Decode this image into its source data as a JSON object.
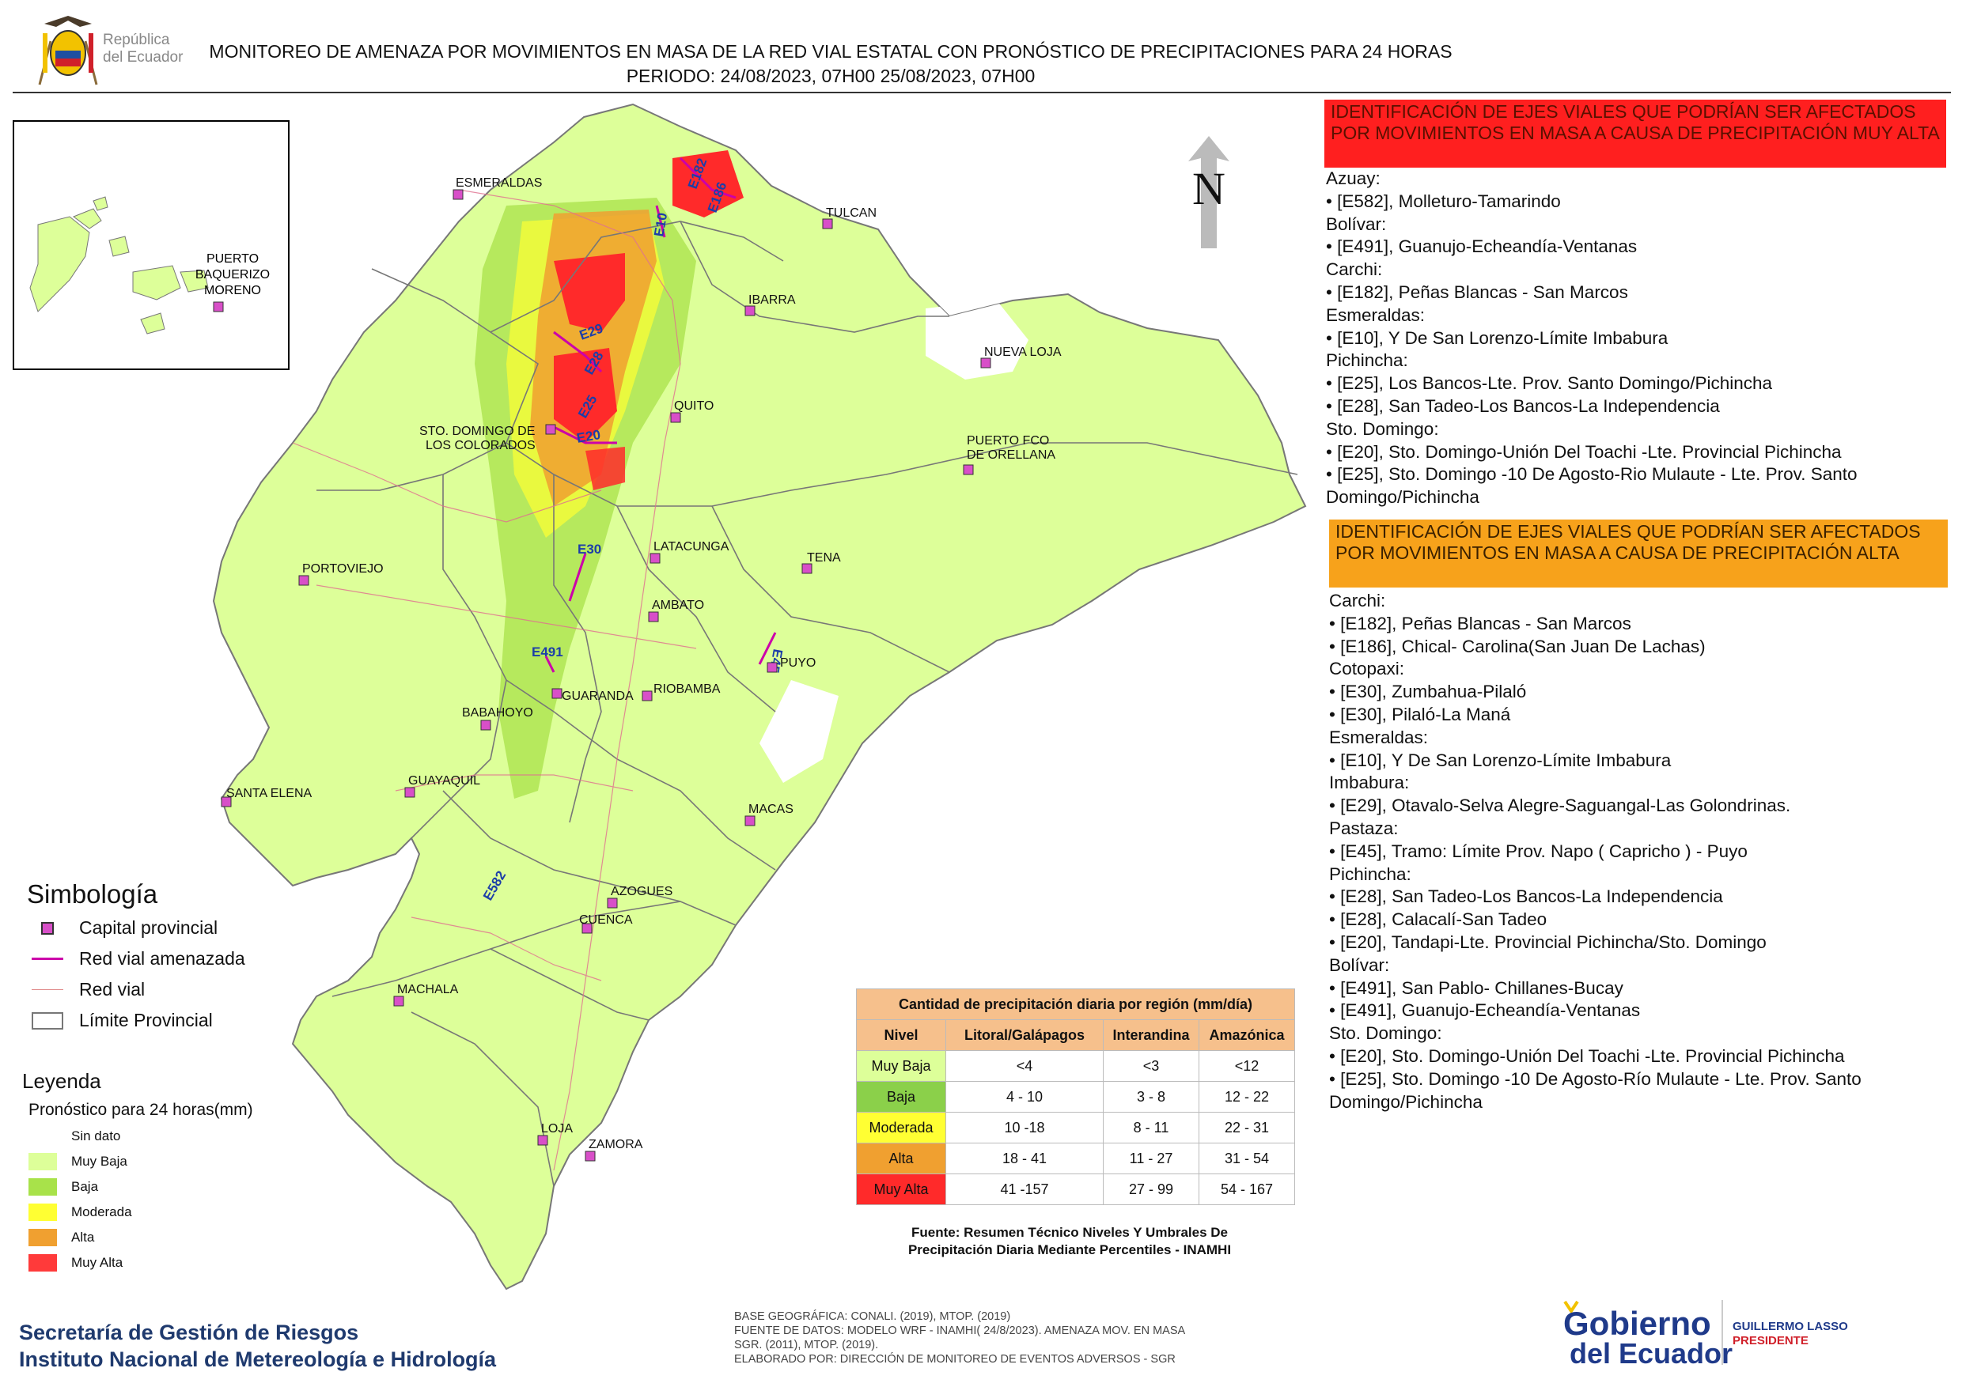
{
  "header": {
    "republica_line1": "República",
    "republica_line2": "del Ecuador",
    "title_line1": "MONITOREO DE AMENAZA POR MOVIMIENTOS EN MASA DE LA RED VIAL  ESTATAL  CON PRONÓSTICO  DE  PRECIPITACIONES PARA 24 HORAS",
    "title_line2": "PERIODO: 24/08/2023, 07H00 25/08/2023, 07H00"
  },
  "map": {
    "north_label": "N",
    "inset_labels": [
      "PUERTO",
      "BAQUERIZO",
      "MORENO"
    ],
    "cities": [
      {
        "name": "ESMERALDAS"
      },
      {
        "name": "TULCAN"
      },
      {
        "name": "IBARRA"
      },
      {
        "name": "NUEVA LOJA"
      },
      {
        "name": "QUITO"
      },
      {
        "name": "STO. DOMINGO DE"
      },
      {
        "name": "LOS COLORADOS"
      },
      {
        "name": "PUERTO FCO"
      },
      {
        "name": "DE ORELLANA"
      },
      {
        "name": "PORTOVIEJO"
      },
      {
        "name": "LATACUNGA"
      },
      {
        "name": "TENA"
      },
      {
        "name": "AMBATO"
      },
      {
        "name": "PUYO"
      },
      {
        "name": "GUARANDA"
      },
      {
        "name": "RIOBAMBA"
      },
      {
        "name": "BABAHOYO"
      },
      {
        "name": "GUAYAQUIL"
      },
      {
        "name": "SANTA ELENA"
      },
      {
        "name": "MACAS"
      },
      {
        "name": "AZOGUES"
      },
      {
        "name": "CUENCA"
      },
      {
        "name": "MACHALA"
      },
      {
        "name": "LOJA"
      },
      {
        "name": "ZAMORA"
      }
    ],
    "road_labels": [
      "E182",
      "E186",
      "E10",
      "E29",
      "E28",
      "E25",
      "E20",
      "E30",
      "E491",
      "E45",
      "E582"
    ]
  },
  "simbologia": {
    "title": "Simbología",
    "items": [
      "Capital provincial",
      "Red vial amenazada",
      "Red vial",
      "Límite Provincial"
    ]
  },
  "leyenda": {
    "title": "Leyenda",
    "subtitle": "Pronóstico para 24 horas(mm)",
    "levels": [
      {
        "label": "Sin dato",
        "color": "#ffffff"
      },
      {
        "label": "Muy Baja",
        "color": "#ddff99"
      },
      {
        "label": "Baja",
        "color": "#a8e24a"
      },
      {
        "label": "Moderada",
        "color": "#ffff33"
      },
      {
        "label": "Alta",
        "color": "#f0a030"
      },
      {
        "label": "Muy Alta",
        "color": "#ff3a3a"
      }
    ]
  },
  "precip_table": {
    "caption": "Cantidad de precipitación diaria por región (mm/día)",
    "headers": [
      "Nivel",
      "Litoral/Galápagos",
      "Interandina",
      "Amazónica"
    ],
    "rows": [
      {
        "nivel": "Muy Baja",
        "color": "#ddff99",
        "litoral": "<4",
        "interandina": "<3",
        "amazonica": "<12"
      },
      {
        "nivel": "Baja",
        "color": "#8bd04a",
        "litoral": "4 - 10",
        "interandina": "3 - 8",
        "amazonica": "12 - 22"
      },
      {
        "nivel": "Moderada",
        "color": "#ffff33",
        "litoral": "10 -18",
        "interandina": "8 - 11",
        "amazonica": "22 - 31"
      },
      {
        "nivel": "Alta",
        "color": "#f0a030",
        "litoral": "18 - 41",
        "interandina": "11 - 27",
        "amazonica": "31 - 54"
      },
      {
        "nivel": "Muy Alta",
        "color": "#ff2a2a",
        "litoral": "41 -157",
        "interandina": "27 - 99",
        "amazonica": "54 - 167"
      }
    ],
    "source_line1": "Fuente: Resumen Técnico Niveles Y Umbrales De",
    "source_line2": "Precipitación Diaria Mediante Percentiles - INAMHI"
  },
  "muy_alta_panel": {
    "header": "IDENTIFICACIÓN DE EJES VIALES QUE PODRÍAN SER AFECTADOS POR MOVIMIENTOS EN MASA A CAUSA DE PRECIPITACIÓN MUY ALTA",
    "color": "#ff1f1f",
    "lines": [
      "Azuay:",
      "• [E582], Molleturo-Tamarindo",
      "Bolívar:",
      "• [E491], Guanujo-Echeandía-Ventanas",
      "Carchi:",
      "• [E182], Peñas Blancas - San Marcos",
      "Esmeraldas:",
      "• [E10], Y De San Lorenzo-Límite Imbabura",
      "Pichincha:",
      "• [E25], Los Bancos-Lte. Prov. Santo Domingo/Pichincha",
      "• [E28], San Tadeo-Los Bancos-La Independencia",
      "Sto. Domingo:",
      "• [E20], Sto. Domingo-Unión Del Toachi -Lte. Provincial Pichincha",
      "• [E25], Sto. Domingo -10 De Agosto-Rio Mulaute - Lte. Prov. Santo",
      "Domingo/Pichincha"
    ]
  },
  "alta_panel": {
    "header": "IDENTIFICACIÓN DE EJES VIALES QUE PODRÍAN SER AFECTADOS POR MOVIMIENTOS EN MASA A CAUSA DE PRECIPITACIÓN  ALTA",
    "color": "#f7a21b",
    "lines": [
      "Carchi:",
      "• [E182], Peñas Blancas - San Marcos",
      "• [E186], Chical- Carolina(San Juan De Lachas)",
      "Cotopaxi:",
      "• [E30], Zumbahua-Pilaló",
      "• [E30], Pilaló-La Maná",
      "Esmeraldas:",
      "• [E10], Y De San Lorenzo-Límite Imbabura",
      "Imbabura:",
      "• [E29], Otavalo-Selva Alegre-Saguangal-Las Golondrinas.",
      "Pastaza:",
      "• [E45], Tramo: Límite Prov. Napo ( Capricho ) - Puyo",
      "Pichincha:",
      "• [E28], San Tadeo-Los Bancos-La Independencia",
      "• [E28], Calacalí-San Tadeo",
      "• [E20], Tandapi-Lte. Provincial Pichincha/Sto. Domingo",
      "Bolívar:",
      "• [E491], San Pablo- Chillanes-Bucay",
      "• [E491], Guanujo-Echeandía-Ventanas",
      "Sto. Domingo:",
      "• [E20], Sto. Domingo-Unión Del Toachi -Lte. Provincial Pichincha",
      "• [E25], Sto. Domingo -10 De Agosto-Río Mulaute - Lte. Prov. Santo",
      "Domingo/Pichincha"
    ]
  },
  "footer": {
    "org1": "Secretaría de Gestión de Riesgos",
    "org2": "Instituto Nacional de Metereología e Hidrología",
    "credit1": "BASE GEOGRÁFICA: CONALI. (2019), MTOP. (2019)",
    "credit2": "FUENTE DE DATOS: MODELO WRF - INAMHI( 24/8/2023).  AMENAZA MOV. EN MASA",
    "credit3": "SGR. (2011), MTOP. (2019).",
    "credit4": "ELABORADO POR: DIRECCIÓN DE MONITOREO DE EVENTOS ADVERSOS - SGR",
    "gob_line1": "Gobierno",
    "gob_line2": "del Ecuador",
    "president_name": "GUILLERMO LASSO",
    "president_title": "PRESIDENTE"
  }
}
